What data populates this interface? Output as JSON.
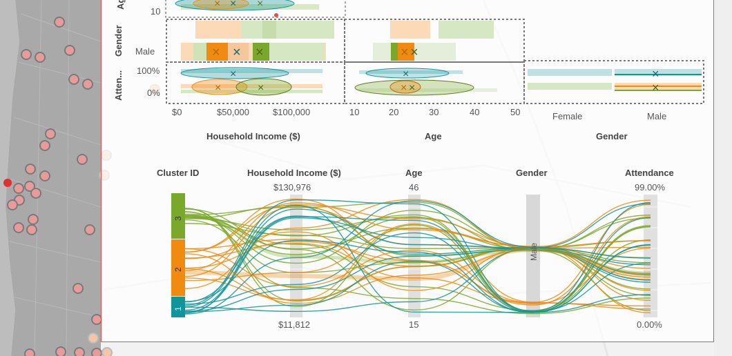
{
  "scatter_matrix": {
    "row_labels": {
      "age_partial": "Ag",
      "gender": "Gender",
      "attendance": "Atten..."
    },
    "y_ticks": {
      "age_10": "10",
      "gender_male": "Male",
      "att_100": "100%",
      "att_0": "0%"
    },
    "x_ticks": {
      "income": [
        "$0",
        "$50,000",
        "$100,000"
      ],
      "age": [
        "10",
        "20",
        "30",
        "40",
        "50"
      ],
      "gender": [
        "Female",
        "Male"
      ]
    },
    "x_titles": {
      "income": "Household Income ($)",
      "age": "Age",
      "gender": "Gender"
    }
  },
  "parallel_sets": {
    "headers": {
      "cluster": "Cluster ID",
      "income": "Household Income ($)",
      "age": "Age",
      "gender": "Gender",
      "attendance": "Attendance"
    },
    "income_range": {
      "max": "$130,976",
      "min": "$11,812"
    },
    "age_range": {
      "max": "46",
      "min": "15"
    },
    "attendance_range": {
      "max": "99.00%",
      "min": "0.00%"
    },
    "gender_value": "Male",
    "clusters": [
      {
        "id": "3",
        "color": "#7aa82a"
      },
      {
        "id": "2",
        "color": "#f08a10"
      },
      {
        "id": "1",
        "color": "#12959a"
      }
    ]
  },
  "colors": {
    "cluster1": "#12959a",
    "cluster2": "#f08a10",
    "cluster3": "#7aa82a",
    "panel_border": "#d9534f"
  }
}
